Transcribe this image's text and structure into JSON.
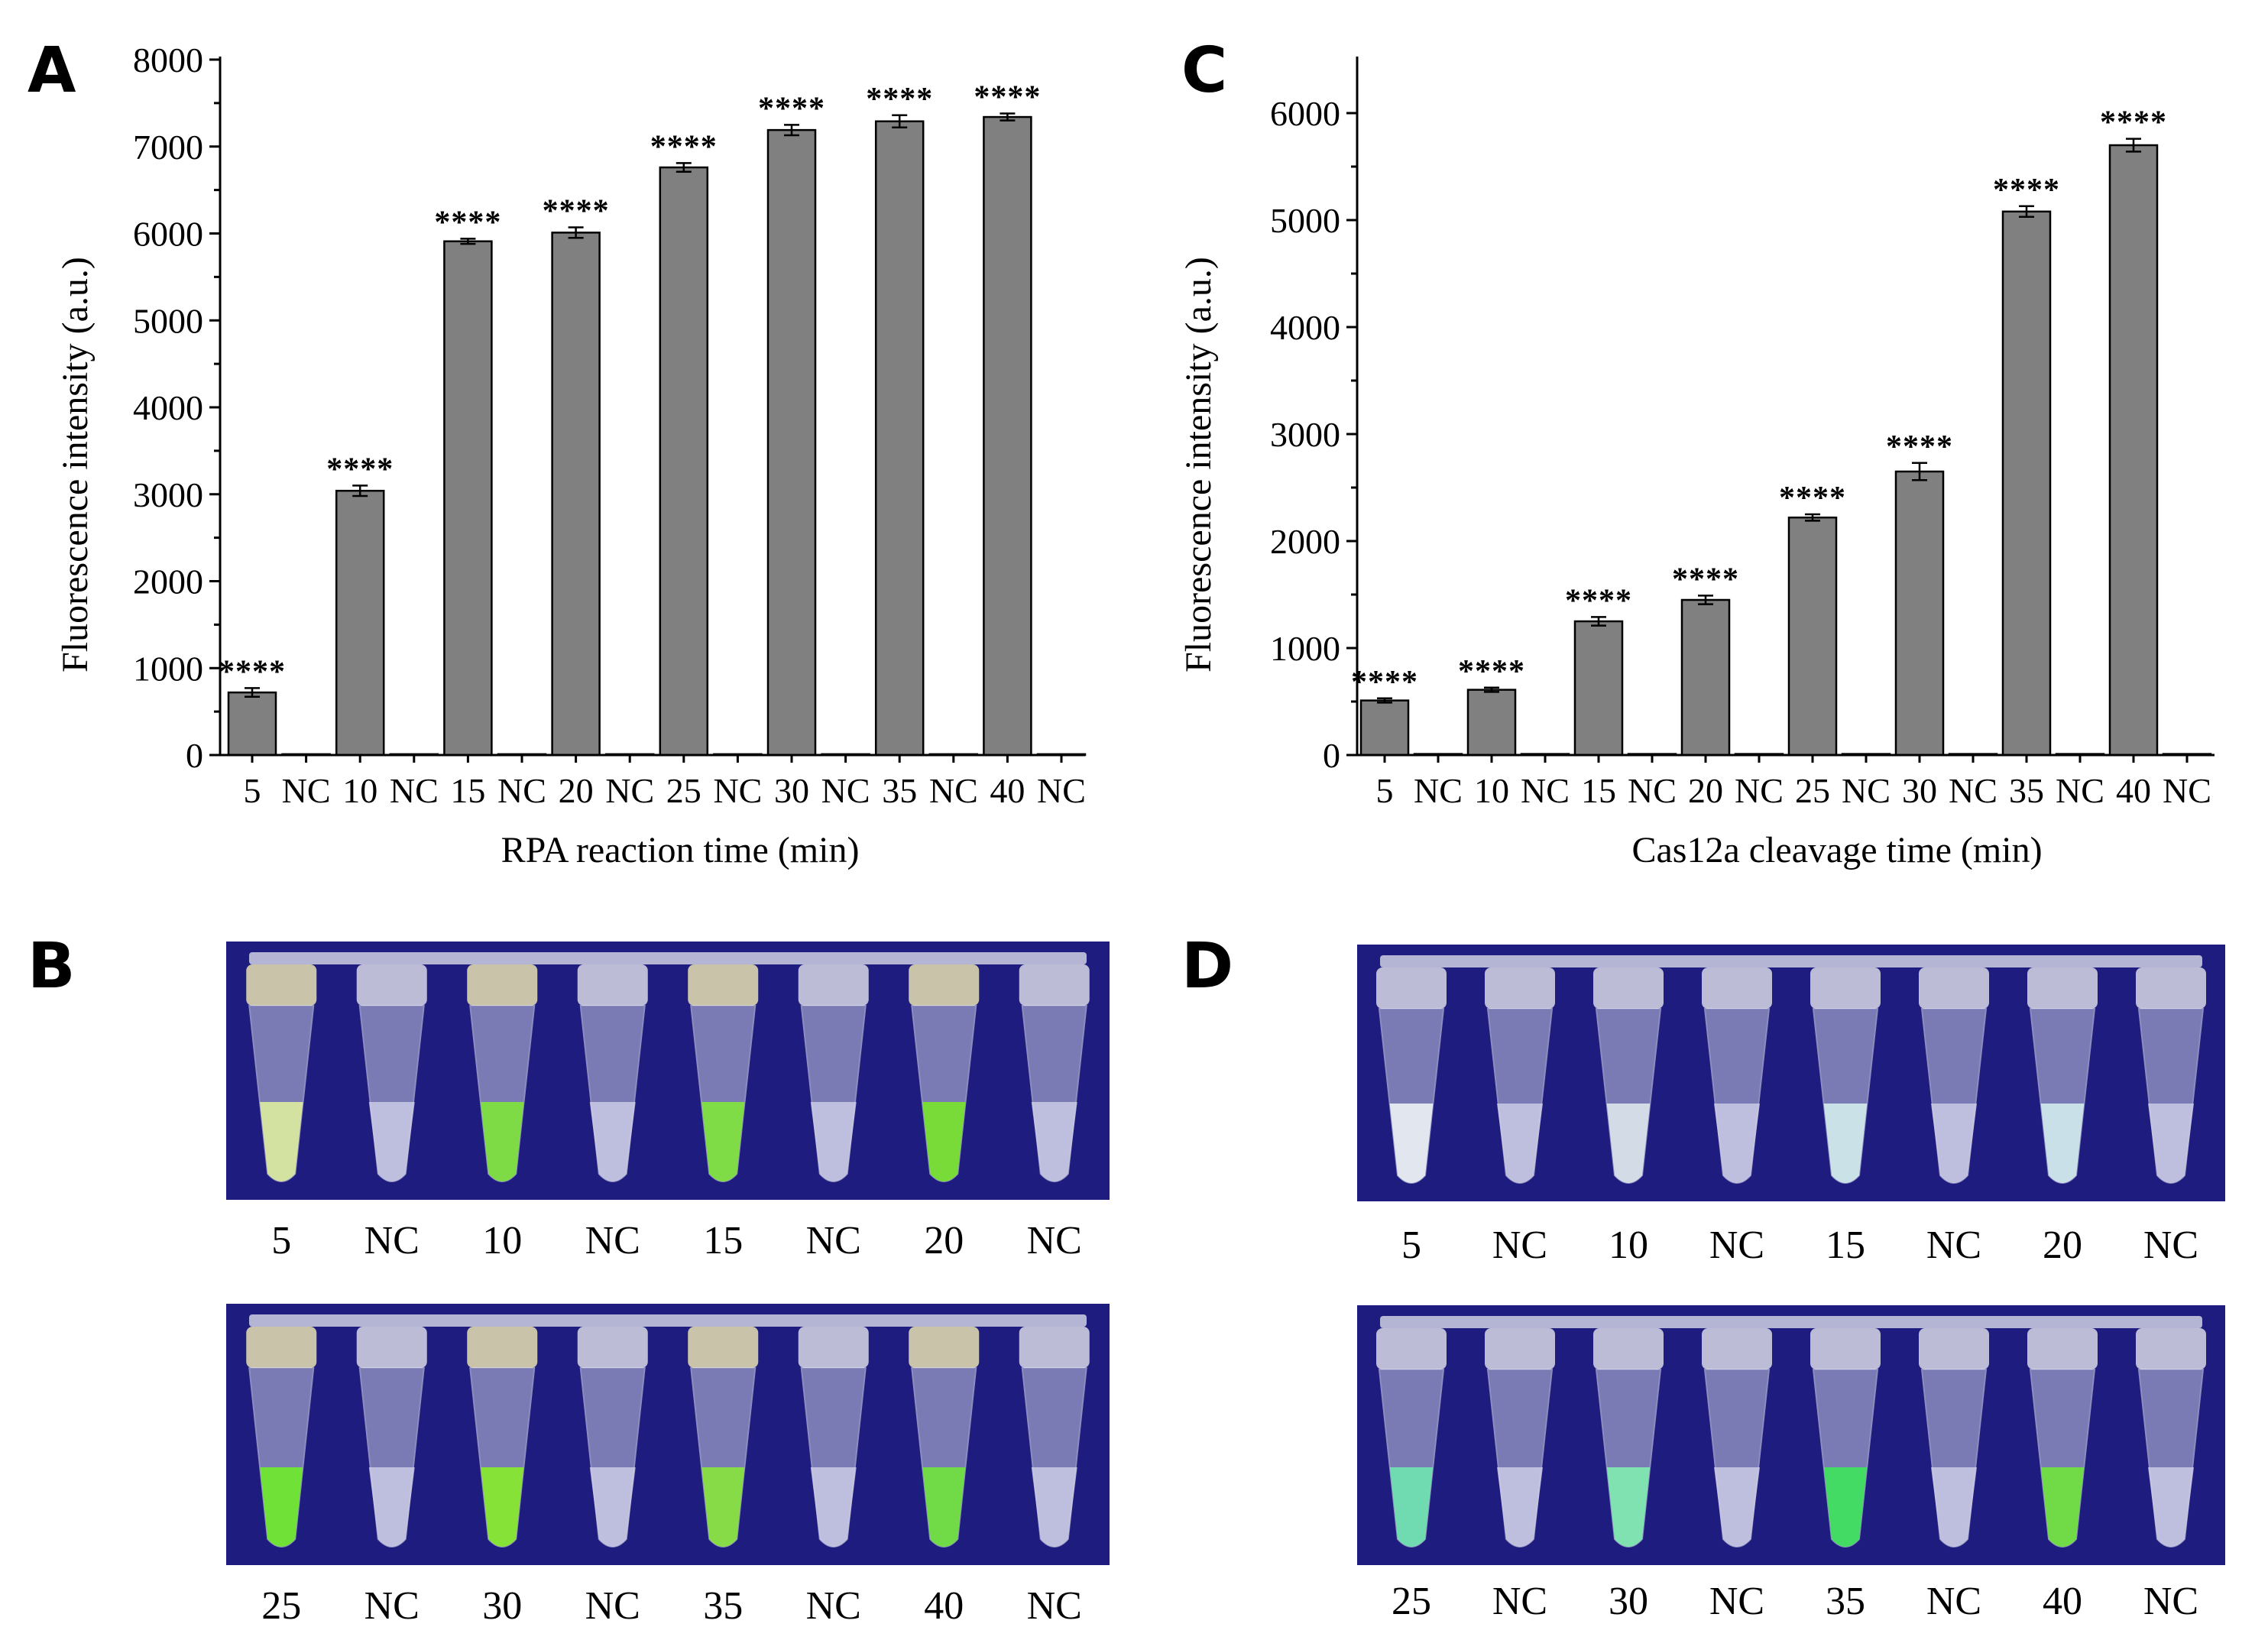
{
  "panels": {
    "A": "A",
    "B": "B",
    "C": "C",
    "D": "D"
  },
  "chart_data": [
    {
      "id": "A",
      "type": "bar",
      "xlabel": "RPA reaction time (min)",
      "ylabel": "Fluorescence intensity (a.u.)",
      "ylim": [
        0,
        8000
      ],
      "yticks": [
        0,
        1000,
        2000,
        3000,
        4000,
        5000,
        6000,
        7000,
        8000
      ],
      "categories": [
        "5",
        "NC",
        "10",
        "NC",
        "15",
        "NC",
        "20",
        "NC",
        "25",
        "NC",
        "30",
        "NC",
        "35",
        "NC",
        "40",
        "NC"
      ],
      "values": [
        720,
        10,
        3040,
        10,
        5910,
        10,
        6010,
        10,
        6760,
        10,
        7190,
        10,
        7290,
        10,
        7340,
        10
      ],
      "errors": [
        50,
        0,
        60,
        0,
        30,
        0,
        60,
        0,
        50,
        0,
        60,
        0,
        70,
        0,
        40,
        0
      ],
      "significance": [
        "****",
        "",
        "****",
        "",
        "****",
        "",
        "****",
        "",
        "****",
        "",
        "****",
        "",
        "****",
        "",
        "****",
        ""
      ],
      "bar_color": "#808080"
    },
    {
      "id": "C",
      "type": "bar",
      "xlabel": "Cas12a cleavage time (min)",
      "ylabel": "Fluorescence intensity (a.u.)",
      "ylim": [
        0,
        6500
      ],
      "yticks": [
        0,
        1000,
        2000,
        3000,
        4000,
        5000,
        6000
      ],
      "categories": [
        "5",
        "NC",
        "10",
        "NC",
        "15",
        "NC",
        "20",
        "NC",
        "25",
        "NC",
        "30",
        "NC",
        "35",
        "NC",
        "40",
        "NC"
      ],
      "values": [
        510,
        10,
        610,
        10,
        1250,
        10,
        1450,
        10,
        2220,
        10,
        2650,
        10,
        5080,
        10,
        5700,
        10
      ],
      "errors": [
        20,
        0,
        20,
        0,
        40,
        0,
        40,
        0,
        30,
        0,
        80,
        0,
        50,
        0,
        60,
        0
      ],
      "significance": [
        "****",
        "",
        "****",
        "",
        "****",
        "",
        "****",
        "",
        "****",
        "",
        "****",
        "",
        "****",
        "",
        "****",
        ""
      ],
      "bar_color": "#808080"
    }
  ],
  "photos": {
    "B_top_labels": [
      "5",
      "NC",
      "10",
      "NC",
      "15",
      "NC",
      "20",
      "NC"
    ],
    "B_bottom_labels": [
      "25",
      "NC",
      "30",
      "NC",
      "35",
      "NC",
      "40",
      "NC"
    ],
    "D_top_labels": [
      "5",
      "NC",
      "10",
      "NC",
      "15",
      "NC",
      "20",
      "NC"
    ],
    "D_bottom_labels": [
      "25",
      "NC",
      "30",
      "NC",
      "35",
      "NC",
      "40",
      "NC"
    ],
    "B_top_fluorescence": [
      "#d8e8a0",
      "none",
      "#7ee040",
      "none",
      "#80e040",
      "none",
      "#78e030",
      "none"
    ],
    "B_bottom_fluorescence": [
      "#70e830",
      "none",
      "#88e830",
      "none",
      "#88e040",
      "none",
      "#70e040",
      "none"
    ],
    "D_top_fluorescence": [
      "#e8ecf2",
      "none",
      "#d8e0ea",
      "none",
      "#cfe8ea",
      "none",
      "#cfe6ec",
      "none"
    ],
    "D_bottom_fluorescence": [
      "#70e0b0",
      "none",
      "#80e8b0",
      "none",
      "#40e060",
      "none",
      "#70e040",
      "none"
    ],
    "background_color": "#1e1c7e"
  }
}
